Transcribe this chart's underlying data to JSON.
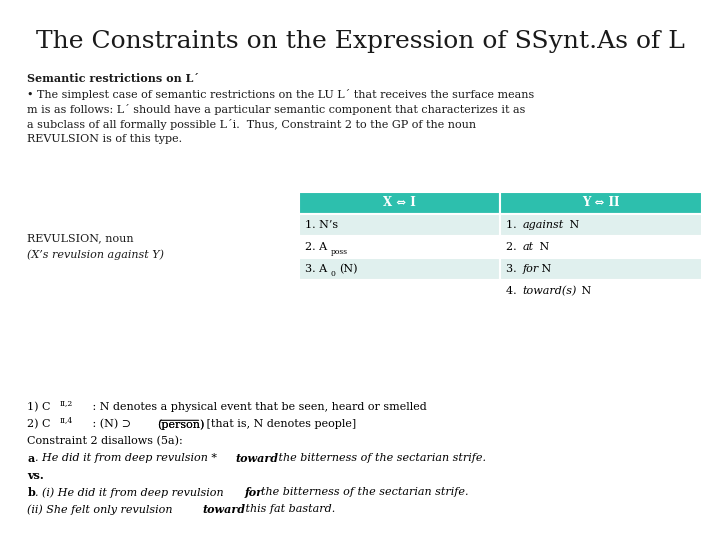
{
  "title": "The Constraints on the Expression of SSynt.As of L",
  "title_fontsize": 18,
  "bg_color": "#ffffff",
  "header_color": "#2dbfad",
  "header_text_color": "#ffffff",
  "row_color_even": "#e0f0ee",
  "row_color_odd": "#ffffff",
  "col_headers": [
    "X ⇔ I",
    "Y ⇔ II"
  ],
  "rows": [
    [
      "1. N’s",
      "1. against N"
    ],
    [
      "2. Aposs",
      "2. at N"
    ],
    [
      "3. A0(N)",
      "3. for N"
    ],
    [
      "",
      "4. toward(s) N"
    ]
  ],
  "left_label_line1": "REVULSION, noun",
  "left_label_line2": "(X’s revulsion against Y)"
}
